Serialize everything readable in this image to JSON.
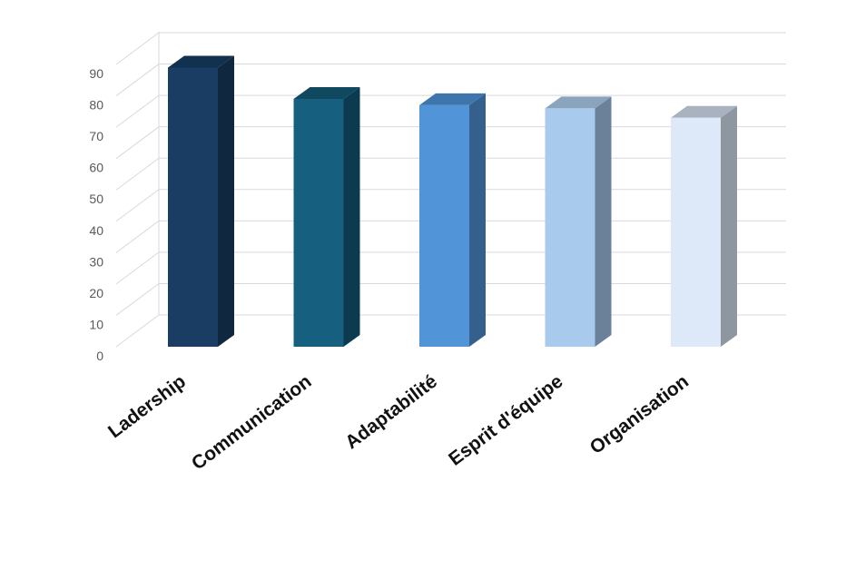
{
  "chart_data": {
    "type": "bar",
    "style": "3d-column",
    "categories": [
      "Ladership",
      "Communication",
      "Adaptabilité",
      "Esprit d'équipe",
      "Organisation"
    ],
    "values": [
      89,
      79,
      77,
      76,
      73
    ],
    "ylim": [
      0,
      90
    ],
    "yticks": [
      0,
      10,
      20,
      30,
      40,
      50,
      60,
      70,
      80,
      90
    ],
    "grid": true,
    "legend": "none",
    "colors": [
      {
        "front": "#1a3d63",
        "side": "#10283f",
        "top": "#12304f"
      },
      {
        "front": "#165f7f",
        "side": "#0c3a4e",
        "top": "#10485f"
      },
      {
        "front": "#5294d8",
        "side": "#355f8c",
        "top": "#3f75ad"
      },
      {
        "front": "#a8cbed",
        "side": "#6a8199",
        "top": "#8aa4be"
      },
      {
        "front": "#dde9f8",
        "side": "#8e969f",
        "top": "#a8b3bf"
      }
    ]
  }
}
